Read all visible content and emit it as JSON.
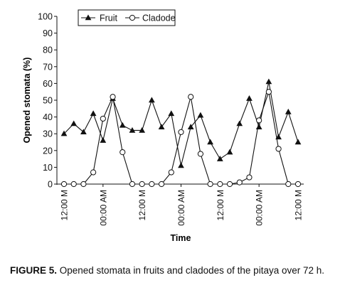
{
  "chart_data": {
    "type": "line",
    "ylabel": "Opened stomata (%)",
    "xlabel": "Time",
    "ylim": [
      0,
      100
    ],
    "yticks": [
      0,
      10,
      20,
      30,
      40,
      50,
      60,
      70,
      80,
      90,
      100
    ],
    "xticks": [
      {
        "x": 0,
        "label": "12:00 M"
      },
      {
        "x": 4,
        "label": "00:00 AM"
      },
      {
        "x": 8,
        "label": "12:00 M"
      },
      {
        "x": 12,
        "label": "00:00 AM"
      },
      {
        "x": 16,
        "label": "12:00 M"
      },
      {
        "x": 20,
        "label": "00:00 AM"
      },
      {
        "x": 24,
        "label": "12:00 M"
      }
    ],
    "x": [
      0,
      1,
      2,
      3,
      4,
      5,
      6,
      7,
      8,
      9,
      10,
      11,
      12,
      13,
      14,
      15,
      16,
      17,
      18,
      19,
      20,
      21,
      22,
      23,
      24
    ],
    "legend_position": "top",
    "series": [
      {
        "name": "Fruit",
        "marker": "triangle",
        "values": [
          30,
          36,
          31,
          42,
          26,
          51,
          35,
          32,
          32,
          50,
          34,
          42,
          11,
          34,
          41,
          25,
          15,
          19,
          36,
          51,
          34,
          61,
          28,
          43,
          25
        ]
      },
      {
        "name": "Cladode",
        "marker": "circle",
        "values": [
          0,
          0,
          0,
          7,
          39,
          52,
          19,
          0,
          0,
          0,
          0,
          7,
          31,
          52,
          18,
          0,
          0,
          0,
          1,
          4,
          38,
          55,
          21,
          0,
          0
        ]
      }
    ]
  },
  "caption": {
    "lead": "FIGURE 5.",
    "text": " Opened stomata in fruits and cladodes of the pitaya over 72 h."
  }
}
